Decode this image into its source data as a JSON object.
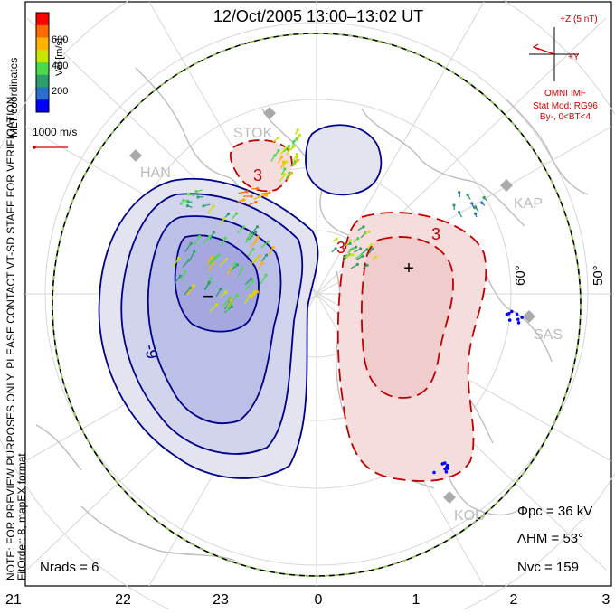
{
  "title": "12/Oct/2005 13:00–13:02 UT",
  "note_vertical": "NOTE: FOR PREVIEW PURPOSES ONLY. PLEASE CONTACT VT-SD STAFF FOR VERIFICATION.",
  "fit_vertical": "FitOrder: 8, mapEX format",
  "mlt_vertical": "MLT coordinates",
  "colorbar": {
    "label": "Vel [m/s]",
    "ticks": [
      "600",
      "400",
      "200"
    ],
    "colors": [
      "#ff0000",
      "#ff6a00",
      "#ffb300",
      "#c8e600",
      "#4cd94c",
      "#2e9e6e",
      "#2a6fd0",
      "#0000ff"
    ]
  },
  "vector_scale": "1000 m/s",
  "imf": {
    "z_label": "+Z (5 nT)",
    "y_label": "+Y",
    "model_line1": "OMNI IMF",
    "model_line2": "Stat Mod: RG96",
    "model_line3": "By-, 0<BT<4"
  },
  "stations": [
    {
      "name": "STOK"
    },
    {
      "name": "HAN"
    },
    {
      "name": "KAP"
    },
    {
      "name": "SAS"
    },
    {
      "name": "KOD"
    }
  ],
  "lat_labels": [
    "60°",
    "50°"
  ],
  "contour_labels": {
    "neg": "-9",
    "pos_a": "3",
    "pos_b": "3",
    "pos_c": "3"
  },
  "extrema": {
    "min_symbol": "−",
    "max_symbol": "+"
  },
  "stats": {
    "phi_pc": "Φpc = 36 kV",
    "lambda_hm": "ΛHM = 53°",
    "n_vc": "Nvc = 159",
    "n_rads": "Nrads = 6"
  },
  "mlt_axis": [
    "21",
    "22",
    "23",
    "0",
    "1",
    "2",
    "3"
  ]
}
